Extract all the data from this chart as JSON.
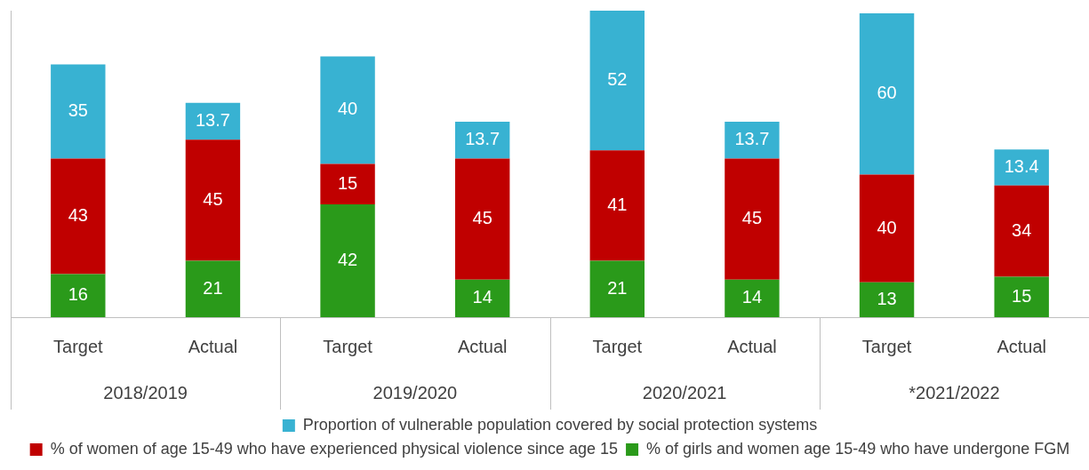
{
  "chart_data": {
    "type": "bar",
    "stacked": true,
    "data_labels": true,
    "grid": false,
    "legend": "bottom",
    "categories": [
      "Target",
      "Actual",
      "Target",
      "Actual",
      "Target",
      "Actual",
      "Target",
      "Actual"
    ],
    "series": [
      {
        "name": "% of girls and women age 15-49 who have undergone FGM",
        "color": "#2a9a1a",
        "values": [
          16,
          21,
          42,
          14,
          21,
          14,
          13,
          15
        ]
      },
      {
        "name": "% of women of age 15-49 who have experienced physical violence since age 15",
        "color": "#c00000",
        "values": [
          43,
          45,
          15,
          45,
          41,
          45,
          40,
          34
        ]
      },
      {
        "name": "Proportion of vulnerable population covered by social protection systems",
        "color": "#38b2d2",
        "values": [
          35,
          13.7,
          40,
          13.7,
          52,
          13.7,
          60,
          13.4
        ]
      }
    ],
    "annotations": [
      "2018/2019",
      "2019/2020",
      "2020/2021",
      "*2021/2022"
    ]
  }
}
